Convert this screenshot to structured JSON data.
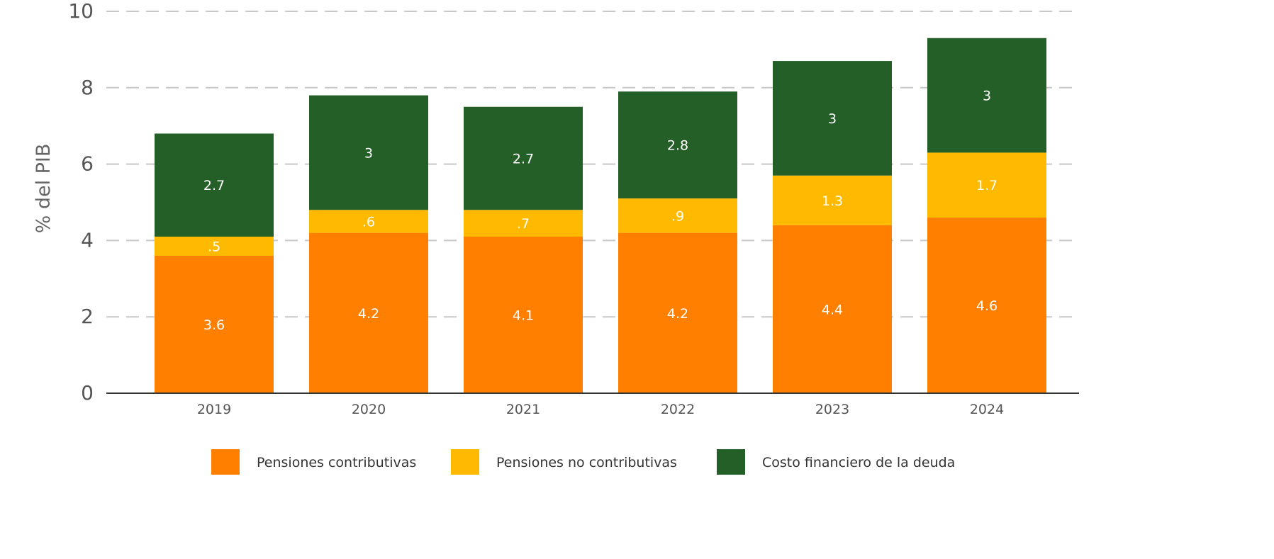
{
  "chart_data": {
    "type": "bar",
    "stacked": true,
    "categories": [
      "2019",
      "2020",
      "2021",
      "2022",
      "2023",
      "2024"
    ],
    "series": [
      {
        "name": "Pensiones contributivas",
        "color": "#FF7F00",
        "values": [
          3.6,
          4.2,
          4.1,
          4.2,
          4.4,
          4.6
        ],
        "labels": [
          "3.6",
          "4.2",
          "4.1",
          "4.2",
          "4.4",
          "4.6"
        ]
      },
      {
        "name": "Pensiones no contributivas",
        "color": "#FFBA00",
        "values": [
          0.5,
          0.6,
          0.7,
          0.9,
          1.3,
          1.7
        ],
        "labels": [
          ".5",
          ".6",
          ".7",
          ".9",
          "1.3",
          "1.7"
        ]
      },
      {
        "name": "Costo financiero de la deuda",
        "color": "#235F27",
        "values": [
          2.7,
          3.0,
          2.7,
          2.8,
          3.0,
          3.0
        ],
        "labels": [
          "2.7",
          "3",
          "2.7",
          "2.8",
          "3",
          "3"
        ]
      }
    ],
    "ylabel": "% del PIB",
    "ylim": [
      0,
      10
    ],
    "yticks": [
      "0",
      "2",
      "4",
      "6",
      "8",
      "10"
    ],
    "grid": true,
    "legend_position": "bottom"
  }
}
